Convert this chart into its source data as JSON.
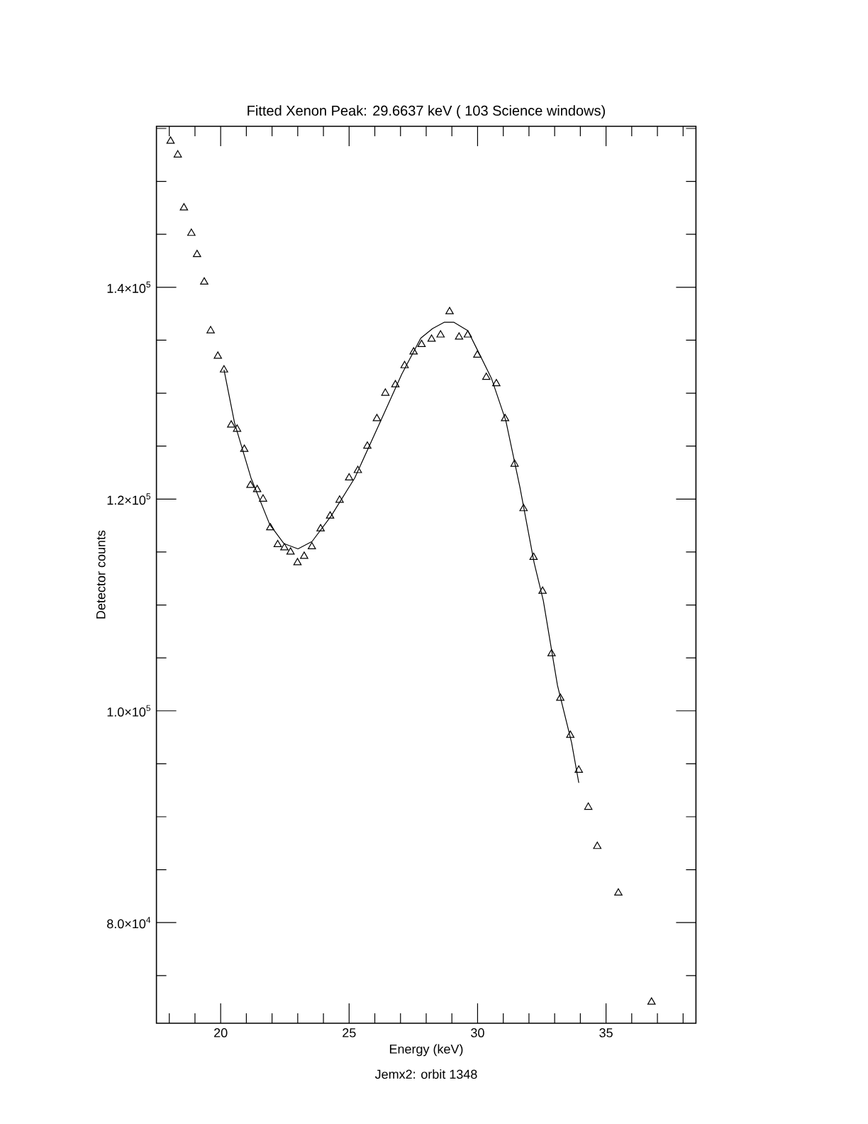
{
  "chart_data": {
    "type": "scatter",
    "title": "Fitted Xenon Peak: 29.6637 keV ( 103 Science windows)",
    "xlabel": "Energy (keV)",
    "ylabel": "Detector counts",
    "annotations": [
      "Jemx2: orbit 1348"
    ],
    "xlim": [
      17.5,
      38.5
    ],
    "ylim": [
      70500,
      155200
    ],
    "xticks": [
      {
        "value": 18,
        "label": null
      },
      {
        "value": 19,
        "label": null
      },
      20,
      {
        "value": 21,
        "label": null
      },
      {
        "value": 22,
        "label": null
      },
      {
        "value": 23,
        "label": null
      },
      {
        "value": 24,
        "label": null
      },
      25,
      {
        "value": 26,
        "label": null
      },
      {
        "value": 27,
        "label": null
      },
      {
        "value": 28,
        "label": null
      },
      {
        "value": 29,
        "label": null
      },
      30,
      {
        "value": 31,
        "label": null
      },
      {
        "value": 32,
        "label": null
      },
      {
        "value": 33,
        "label": null
      },
      {
        "value": 34,
        "label": null
      },
      35,
      {
        "value": 36,
        "label": null
      },
      {
        "value": 37,
        "label": null
      },
      {
        "value": 38,
        "label": null
      }
    ],
    "yticks": [
      {
        "value": 75000,
        "label": null
      },
      {
        "value": 80000,
        "label": "8.0×10$^{4}$"
      },
      {
        "value": 85000,
        "label": null
      },
      {
        "value": 90000,
        "label": null
      },
      {
        "value": 95000,
        "label": null
      },
      {
        "value": 100000,
        "label": "1.0×10$^{5}$"
      },
      {
        "value": 105000,
        "label": null
      },
      {
        "value": 110000,
        "label": null
      },
      {
        "value": 115000,
        "label": null
      },
      {
        "value": 120000,
        "label": "1.2×10$^{5}$"
      },
      {
        "value": 125000,
        "label": null
      },
      {
        "value": 130000,
        "label": null
      },
      {
        "value": 135000,
        "label": null
      },
      {
        "value": 140000,
        "label": "1.4×10$^{5}$"
      },
      {
        "value": 145000,
        "label": null
      },
      {
        "value": 150000,
        "label": null
      },
      {
        "value": 155000,
        "label": null
      }
    ],
    "grid": false,
    "series": [
      {
        "marker": "triangle",
        "color": "#000000",
        "x": [
          18.05,
          18.33,
          18.57,
          18.86,
          19.08,
          19.36,
          19.61,
          19.89,
          20.13,
          20.41,
          20.64,
          20.92,
          21.16,
          21.42,
          21.65,
          21.93,
          22.22,
          22.48,
          22.72,
          22.99,
          23.25,
          23.55,
          23.89,
          24.26,
          24.63,
          25.0,
          25.34,
          25.71,
          26.08,
          26.41,
          26.8,
          27.16,
          27.51,
          27.82,
          28.21,
          28.56,
          28.91,
          29.28,
          29.62,
          29.99,
          30.34,
          30.73,
          31.07,
          31.44,
          31.79,
          32.18,
          32.53,
          32.88,
          33.22,
          33.61,
          33.94,
          34.31,
          34.66,
          35.48,
          36.77
        ],
        "values": [
          153800,
          152500,
          147500,
          145100,
          143100,
          140500,
          135900,
          133500,
          132200,
          127000,
          126600,
          124700,
          121300,
          120900,
          120000,
          117300,
          115700,
          115400,
          115000,
          114000,
          114600,
          115500,
          117200,
          118400,
          119900,
          122000,
          122700,
          125000,
          127600,
          130000,
          130800,
          132600,
          133900,
          134600,
          135100,
          135500,
          137700,
          135300,
          135500,
          133600,
          131500,
          130900,
          127600,
          123300,
          119100,
          114500,
          111300,
          105400,
          101200,
          97700,
          94400,
          90900,
          87200,
          82800,
          72500
        ]
      },
      {
        "type": "line",
        "marker": "none",
        "line_style": "solid",
        "color": "#000000",
        "x": [
          20.13,
          20.54,
          21.18,
          21.91,
          22.46,
          23.01,
          23.56,
          24.3,
          25.22,
          26.14,
          27.05,
          27.79,
          28.25,
          28.71,
          29.07,
          29.62,
          29.99,
          30.54,
          31.1,
          31.65,
          32.2,
          32.56,
          33.11,
          33.66,
          33.94
        ],
        "values": [
          132200,
          127200,
          122000,
          117600,
          115800,
          115300,
          116000,
          118400,
          122000,
          126900,
          131800,
          135200,
          136100,
          136700,
          136700,
          135900,
          134100,
          131400,
          127400,
          121100,
          114000,
          110400,
          102400,
          97000,
          93200
        ]
      }
    ]
  }
}
